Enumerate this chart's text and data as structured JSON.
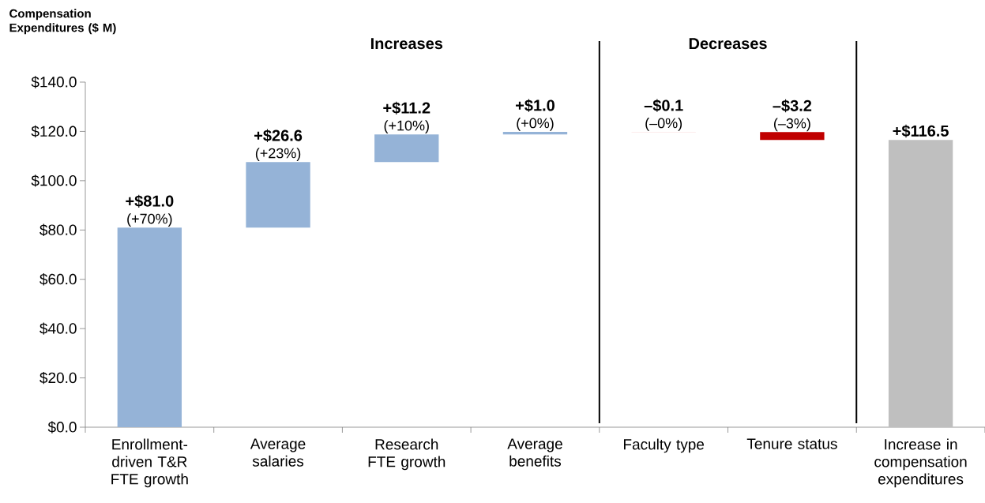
{
  "chart_data": {
    "type": "bar",
    "ylabel": "Compensation Expenditures ($ M)",
    "categories": [
      "Enrollment-driven T&R FTE growth",
      "Average salaries",
      "Research FTE growth",
      "Average benefits",
      "Faculty type",
      "Tenure status",
      "Increase in compensation expenditures"
    ],
    "values": [
      81.0,
      26.6,
      11.2,
      1.0,
      -0.1,
      -3.2,
      116.5
    ],
    "base": [
      0,
      81.0,
      107.6,
      118.8,
      119.8,
      119.7,
      0
    ],
    "colors": [
      "#95b3d7",
      "#95b3d7",
      "#95b3d7",
      "#95b3d7",
      "#f2b8b8",
      "#c00000",
      "#bfbfbf"
    ],
    "value_labels": [
      "+$81.0",
      "+$26.6",
      "+$11.2",
      "+$1.0",
      "–$0.1",
      "–$3.2",
      "+$116.5"
    ],
    "ylim": [
      0,
      140
    ],
    "yticks": [
      {
        "value": 0,
        "label": "$0.0"
      },
      {
        "value": 20,
        "label": "$20.0"
      },
      {
        "value": 40,
        "label": "$40.0"
      },
      {
        "value": 60,
        "label": "$60.0"
      },
      {
        "value": 80,
        "label": "$80.0"
      },
      {
        "value": 100,
        "label": "$100.0"
      },
      {
        "value": 120,
        "label": "$120.0"
      },
      {
        "value": 140,
        "label": "$140.0"
      }
    ],
    "annotations": [
      "Increases",
      "Decreases",
      {
        "text": "(+70%)",
        "x": "Enrollment-driven T&R FTE growth",
        "y": 81.0
      },
      {
        "text": "(+23%)",
        "x": "Average salaries",
        "y": 107.6
      },
      {
        "text": "(+10%)",
        "x": "Research FTE growth",
        "y": 118.8
      },
      {
        "text": "(+0%)",
        "x": "Average benefits",
        "y": 119.8
      },
      {
        "text": "(–0%)",
        "x": "Faculty type",
        "y": 119.8
      },
      {
        "text": "(–3%)",
        "x": "Tenure status",
        "y": 119.7
      }
    ],
    "grid": false
  }
}
